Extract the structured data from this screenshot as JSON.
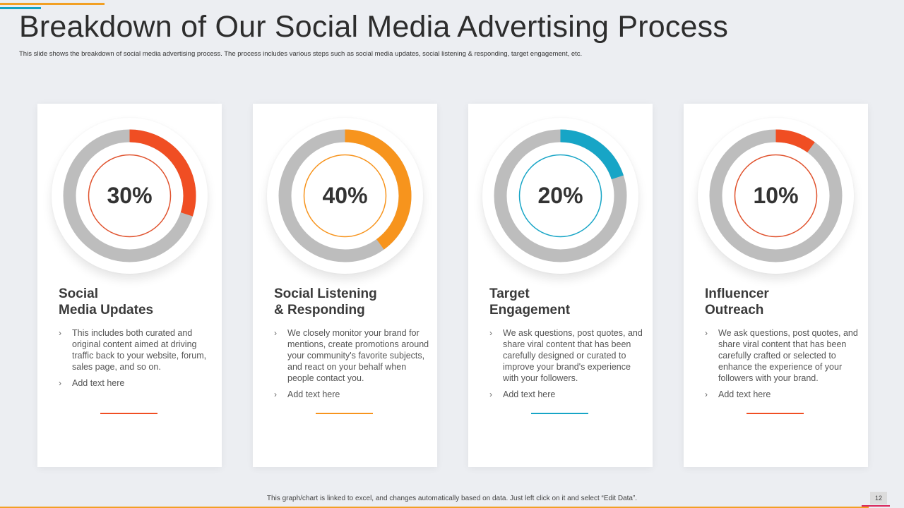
{
  "slide": {
    "title": "Breakdown of Our Social Media Advertising Process",
    "subtitle": "This slide shows the breakdown of social media advertising process. The process includes various steps such as social media updates, social listening & responding, target engagement, etc.",
    "footer_note": "This graph/chart is linked to excel, and changes automatically based on data.  Just left click on it and select “Edit Data”.",
    "page_number": "12"
  },
  "colors": {
    "track": "#bdbdbd",
    "red": "#f04e23",
    "orange": "#f7941d",
    "blue": "#17a5c6",
    "inner_red": "#e0522d"
  },
  "cards": [
    {
      "percent_label": "30%",
      "value": 30,
      "title_line1": "Social",
      "title_line2": "Media Updates",
      "bullet1": "This includes both curated and original content aimed at driving traffic back to your website, forum, sales page, and so on.",
      "bullet2": "Add text here",
      "accent": "#f04e23",
      "inner": "#e0522d"
    },
    {
      "percent_label": "40%",
      "value": 40,
      "title_line1": "Social Listening",
      "title_line2": "& Responding",
      "bullet1": "We closely monitor your brand for mentions, create promotions around your community's favorite subjects, and react on your behalf when people contact you.",
      "bullet2": "Add text here",
      "accent": "#f7941d",
      "inner": "#f7941d"
    },
    {
      "percent_label": "20%",
      "value": 20,
      "title_line1": "Target",
      "title_line2": "Engagement",
      "bullet1": "We ask questions, post quotes, and share viral  content that has been carefully designed or curated to improve  your brand's experience with your followers.",
      "bullet2": "Add text here",
      "accent": "#17a5c6",
      "inner": "#17a5c6"
    },
    {
      "percent_label": "10%",
      "value": 10,
      "title_line1": "Influencer",
      "title_line2": "Outreach",
      "bullet1": "We ask questions, post quotes, and share viral  content that has been carefully crafted or selected to enhance the experience of your followers with your brand.",
      "bullet2": "Add text here",
      "accent": "#f04e23",
      "inner": "#e0522d"
    }
  ]
}
